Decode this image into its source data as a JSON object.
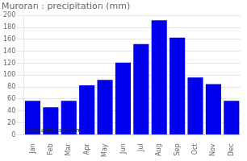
{
  "chart_data": {
    "type": "bar",
    "title": "Muroran : precipitation (mm)",
    "categories": [
      "Jan",
      "Feb",
      "Mar",
      "Apr",
      "May",
      "Jun",
      "Jul",
      "Aug",
      "Sep",
      "Oct",
      "Nov",
      "Dec"
    ],
    "values": [
      57,
      46,
      57,
      83,
      92,
      121,
      152,
      192,
      163,
      96,
      85,
      57
    ],
    "color": "#0000EE",
    "ylim": [
      0,
      200
    ],
    "yticks": [
      0,
      20,
      40,
      60,
      80,
      100,
      120,
      140,
      160,
      180,
      200
    ],
    "grid": true,
    "annotations": [
      "www.allmetsat.com"
    ]
  }
}
